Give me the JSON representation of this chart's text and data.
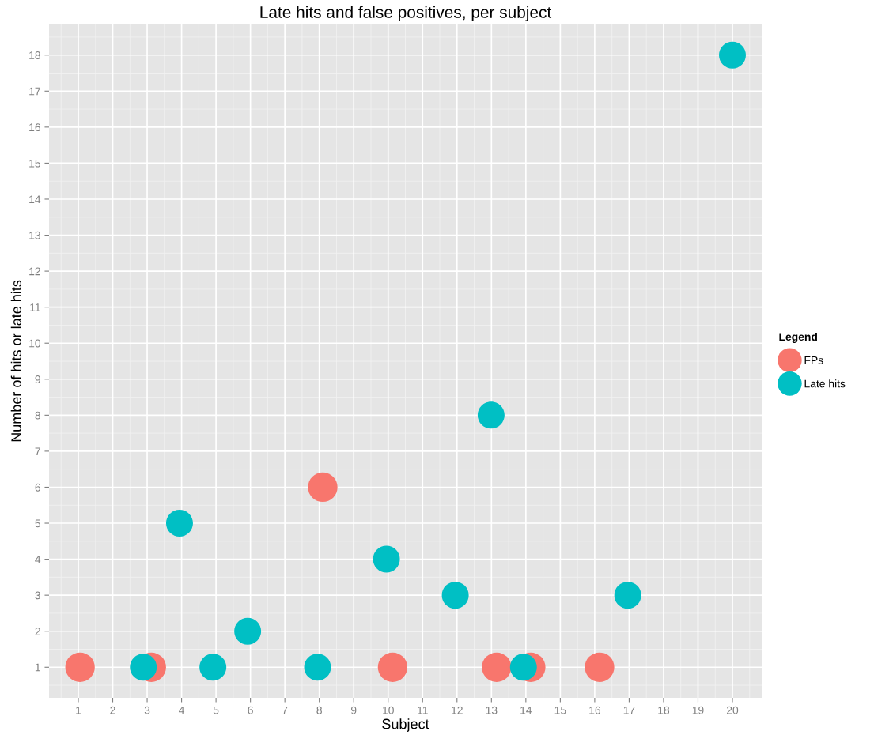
{
  "chart_data": {
    "type": "scatter",
    "title": "Late hits and false positives, per subject",
    "xlabel": "Subject",
    "ylabel": "Number of hits or late hits",
    "legend_title": "Legend",
    "series": [
      {
        "name": "FPs",
        "color": "#f8766d",
        "x": [
          1.05,
          3.12,
          8.1,
          10.13,
          13.15,
          14.14,
          16.14
        ],
        "values": [
          1,
          1,
          6,
          1,
          1,
          1,
          1
        ]
      },
      {
        "name": "Late hits",
        "color": "#00bfc4",
        "x": [
          2.89,
          3.94,
          4.91,
          5.92,
          7.95,
          9.95,
          11.95,
          12.99,
          13.93,
          16.96,
          20.0
        ],
        "values": [
          1,
          5,
          1,
          2,
          1,
          4,
          3,
          8,
          1,
          3,
          18
        ]
      }
    ],
    "xlim": [
      0.15,
      20.85
    ],
    "xticks": [
      1,
      2,
      3,
      4,
      5,
      6,
      7,
      8,
      9,
      10,
      11,
      12,
      13,
      14,
      15,
      16,
      17,
      18,
      19,
      20
    ],
    "ylim": [
      0.15,
      18.85
    ],
    "yticks": [
      1,
      2,
      3,
      4,
      5,
      6,
      7,
      8,
      9,
      10,
      11,
      12,
      13,
      14,
      15,
      16,
      17,
      18
    ],
    "grid": true,
    "legend": "right",
    "marker": "circle"
  }
}
